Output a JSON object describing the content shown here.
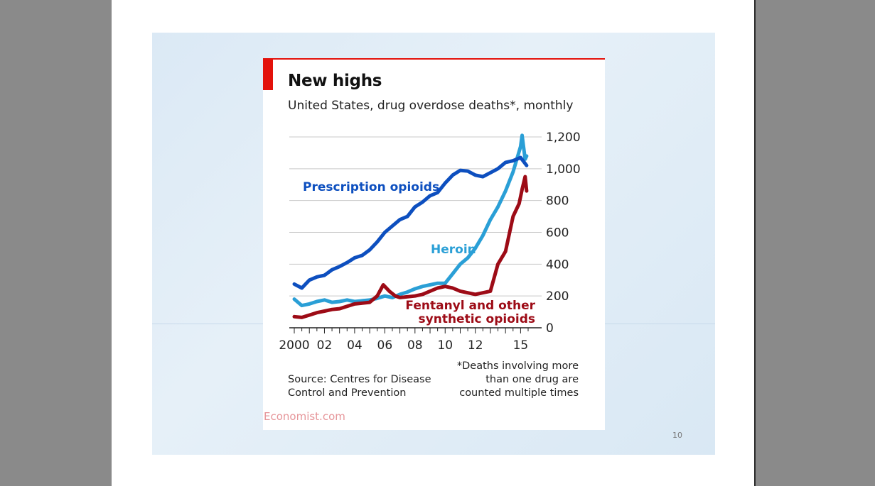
{
  "colors": {
    "prescription": "#0d4fbf",
    "heroin": "#2a9fd6",
    "fentanyl": "#9d0b16",
    "accent": "#e3120b"
  },
  "slide": {
    "page_number": "10"
  },
  "chart_data": {
    "type": "line",
    "title": "New highs",
    "subtitle": "United States, drug overdose deaths*, monthly",
    "ylim": [
      0,
      1200
    ],
    "yticks": [
      0,
      200,
      400,
      600,
      800,
      1000,
      1200
    ],
    "ytick_labels": [
      "0",
      "200",
      "400",
      "600",
      "800",
      "1,000",
      "1,200"
    ],
    "xlim": [
      2000,
      2015.6
    ],
    "xticks": [
      2000,
      2002,
      2004,
      2006,
      2008,
      2010,
      2012,
      2015
    ],
    "xtick_labels": [
      "2000",
      "02",
      "04",
      "06",
      "08",
      "10",
      "12",
      "15"
    ],
    "grid": true,
    "axis_side": "right",
    "series": [
      {
        "name": "Prescription opioids",
        "color_key": "prescription",
        "label_lines": [
          "Prescription opioids"
        ],
        "points": [
          [
            2000.0,
            275
          ],
          [
            2000.5,
            250
          ],
          [
            2001.0,
            300
          ],
          [
            2001.5,
            320
          ],
          [
            2002.0,
            330
          ],
          [
            2002.5,
            365
          ],
          [
            2003.0,
            385
          ],
          [
            2003.5,
            410
          ],
          [
            2004.0,
            440
          ],
          [
            2004.5,
            455
          ],
          [
            2005.0,
            490
          ],
          [
            2005.5,
            540
          ],
          [
            2006.0,
            600
          ],
          [
            2006.5,
            640
          ],
          [
            2007.0,
            680
          ],
          [
            2007.5,
            700
          ],
          [
            2008.0,
            760
          ],
          [
            2008.5,
            790
          ],
          [
            2009.0,
            830
          ],
          [
            2009.5,
            850
          ],
          [
            2010.0,
            910
          ],
          [
            2010.5,
            960
          ],
          [
            2011.0,
            990
          ],
          [
            2011.5,
            985
          ],
          [
            2012.0,
            960
          ],
          [
            2012.5,
            950
          ],
          [
            2013.0,
            975
          ],
          [
            2013.5,
            1000
          ],
          [
            2014.0,
            1040
          ],
          [
            2014.5,
            1050
          ],
          [
            2015.0,
            1070
          ],
          [
            2015.4,
            1020
          ]
        ]
      },
      {
        "name": "Heroin",
        "color_key": "heroin",
        "label_lines": [
          "Heroin"
        ],
        "points": [
          [
            2000.0,
            180
          ],
          [
            2000.5,
            140
          ],
          [
            2001.0,
            150
          ],
          [
            2001.5,
            165
          ],
          [
            2002.0,
            175
          ],
          [
            2002.5,
            160
          ],
          [
            2003.0,
            165
          ],
          [
            2003.5,
            175
          ],
          [
            2004.0,
            165
          ],
          [
            2004.5,
            170
          ],
          [
            2005.0,
            175
          ],
          [
            2005.5,
            185
          ],
          [
            2006.0,
            200
          ],
          [
            2006.5,
            190
          ],
          [
            2007.0,
            210
          ],
          [
            2007.5,
            225
          ],
          [
            2008.0,
            245
          ],
          [
            2008.5,
            260
          ],
          [
            2009.0,
            270
          ],
          [
            2009.5,
            280
          ],
          [
            2010.0,
            280
          ],
          [
            2010.5,
            340
          ],
          [
            2011.0,
            400
          ],
          [
            2011.5,
            440
          ],
          [
            2012.0,
            500
          ],
          [
            2012.5,
            580
          ],
          [
            2013.0,
            680
          ],
          [
            2013.5,
            760
          ],
          [
            2014.0,
            860
          ],
          [
            2014.5,
            980
          ],
          [
            2015.0,
            1140
          ],
          [
            2015.1,
            1210
          ],
          [
            2015.3,
            1060
          ],
          [
            2015.4,
            1080
          ]
        ]
      },
      {
        "name": "Fentanyl and other synthetic opioids",
        "color_key": "fentanyl",
        "label_lines": [
          "Fentanyl and other",
          "synthetic opioids"
        ],
        "points": [
          [
            2000.0,
            70
          ],
          [
            2000.5,
            65
          ],
          [
            2001.0,
            80
          ],
          [
            2001.5,
            95
          ],
          [
            2002.0,
            105
          ],
          [
            2002.5,
            115
          ],
          [
            2003.0,
            120
          ],
          [
            2003.5,
            135
          ],
          [
            2004.0,
            150
          ],
          [
            2004.5,
            155
          ],
          [
            2005.0,
            160
          ],
          [
            2005.5,
            200
          ],
          [
            2005.9,
            270
          ],
          [
            2006.3,
            230
          ],
          [
            2006.7,
            200
          ],
          [
            2007.0,
            190
          ],
          [
            2007.5,
            195
          ],
          [
            2008.0,
            200
          ],
          [
            2008.5,
            210
          ],
          [
            2009.0,
            230
          ],
          [
            2009.5,
            250
          ],
          [
            2010.0,
            260
          ],
          [
            2010.5,
            250
          ],
          [
            2011.0,
            230
          ],
          [
            2011.5,
            220
          ],
          [
            2012.0,
            210
          ],
          [
            2012.5,
            220
          ],
          [
            2013.0,
            230
          ],
          [
            2013.5,
            400
          ],
          [
            2014.0,
            480
          ],
          [
            2014.5,
            700
          ],
          [
            2014.9,
            780
          ],
          [
            2015.1,
            870
          ],
          [
            2015.3,
            950
          ],
          [
            2015.4,
            860
          ]
        ]
      }
    ]
  },
  "source_text": [
    "Source: Centres for Disease",
    "Control and Prevention"
  ],
  "footnote_text": [
    "*Deaths involving more",
    "than one drug are",
    "counted multiple times"
  ],
  "watermark": "Economist.com"
}
